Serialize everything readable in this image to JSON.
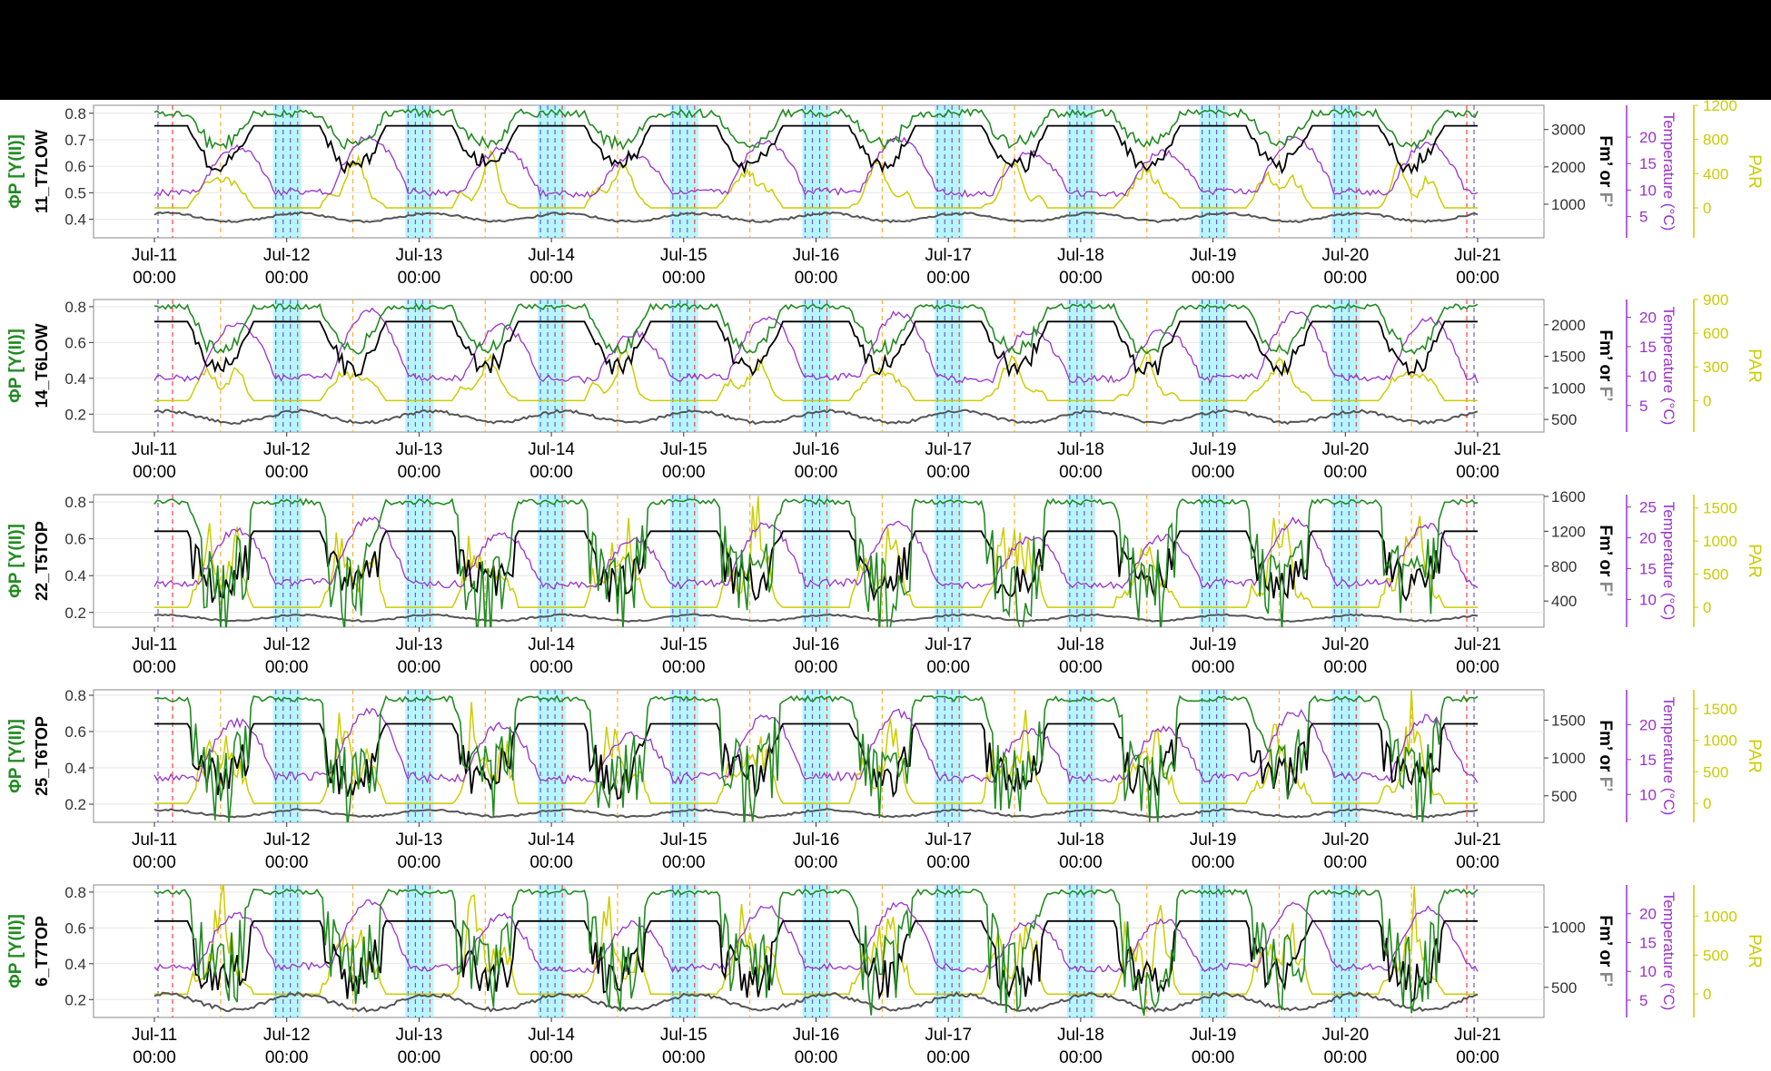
{
  "colors": {
    "phiP": "#228B22",
    "fm": "#000000",
    "f": "#555555",
    "temperature": "#9932CC",
    "par": "#CCCC00",
    "highlight": "#88F0FF",
    "dash_blue": "#6A5ACD",
    "dash_red": "#FF4040",
    "dash_orange": "#FFB030",
    "background": "#FFFFFF",
    "top_band": "#000000"
  },
  "labels": {
    "phi": "ΦP [Y(II)]",
    "fm_or_f_prefix": "Fm’ or ",
    "fm_or_f_suffix": "F’",
    "temperature": "Temperature (°C)",
    "par": "PAR"
  },
  "x_ticks": [
    {
      "date": "Jul-11",
      "time": "00:00"
    },
    {
      "date": "Jul-12",
      "time": "00:00"
    },
    {
      "date": "Jul-13",
      "time": "00:00"
    },
    {
      "date": "Jul-14",
      "time": "00:00"
    },
    {
      "date": "Jul-15",
      "time": "00:00"
    },
    {
      "date": "Jul-16",
      "time": "00:00"
    },
    {
      "date": "Jul-17",
      "time": "00:00"
    },
    {
      "date": "Jul-18",
      "time": "00:00"
    },
    {
      "date": "Jul-19",
      "time": "00:00"
    },
    {
      "date": "Jul-20",
      "time": "00:00"
    },
    {
      "date": "Jul-21",
      "time": "00:00"
    }
  ],
  "chart_data": [
    {
      "type": "line",
      "sample": "11_T7LOW",
      "x_range": [
        "Jul-11 00:00",
        "Jul-21 00:00"
      ],
      "phi_ticks": [
        "0.8",
        "0.7",
        "0.6",
        "0.5",
        "0.4"
      ],
      "fm_ticks": [
        "3000",
        "2000",
        "1000"
      ],
      "temp_ticks": [
        "20",
        "15",
        "10",
        "5"
      ],
      "par_ticks": [
        "1200",
        "800",
        "400",
        "0"
      ],
      "ranges": {
        "phi": [
          0.33,
          0.83
        ],
        "fm": [
          100,
          3650
        ],
        "temp": [
          1,
          26
        ],
        "par": [
          -350,
          1200
        ]
      },
      "dynamics": {
        "phi_day": 0.68,
        "phi_night": 0.8,
        "fm_day": 2000,
        "fm_night": 3100,
        "f_level": 720,
        "temp_min": 8,
        "temp_max": 20,
        "par_peak": 650,
        "spiky": false
      },
      "series": [
        {
          "name": "ΦP [Y(II)]",
          "axis": "left"
        },
        {
          "name": "Fm’",
          "axis": "right"
        },
        {
          "name": "F’",
          "axis": "right"
        },
        {
          "name": "Temperature (°C)",
          "axis": "right"
        },
        {
          "name": "PAR",
          "axis": "right"
        }
      ]
    },
    {
      "type": "line",
      "sample": "14_T6LOW",
      "x_range": [
        "Jul-11 00:00",
        "Jul-21 00:00"
      ],
      "phi_ticks": [
        "0.8",
        "0.6",
        "0.4",
        "0.2"
      ],
      "fm_ticks": [
        "2000",
        "1500",
        "1000",
        "500"
      ],
      "temp_ticks": [
        "20",
        "15",
        "10",
        "5"
      ],
      "par_ticks": [
        "900",
        "600",
        "300",
        "0"
      ],
      "ranges": {
        "phi": [
          0.1,
          0.84
        ],
        "fm": [
          300,
          2400
        ],
        "temp": [
          0.5,
          23
        ],
        "par": [
          -280,
          900
        ]
      },
      "dynamics": {
        "phi_day": 0.55,
        "phi_night": 0.8,
        "fm_day": 1300,
        "fm_night": 2050,
        "f_level": 600,
        "temp_min": 8,
        "temp_max": 21,
        "par_peak": 450,
        "spiky": false
      },
      "series": [
        {
          "name": "ΦP [Y(II)]",
          "axis": "left"
        },
        {
          "name": "Fm’",
          "axis": "right"
        },
        {
          "name": "F’",
          "axis": "right"
        },
        {
          "name": "Temperature (°C)",
          "axis": "right"
        },
        {
          "name": "PAR",
          "axis": "right"
        }
      ]
    },
    {
      "type": "line",
      "sample": "22_T5TOP",
      "x_range": [
        "Jul-11 00:00",
        "Jul-21 00:00"
      ],
      "phi_ticks": [
        "0.8",
        "0.6",
        "0.4",
        "0.2"
      ],
      "fm_ticks": [
        "1600",
        "1200",
        "800",
        "400"
      ],
      "temp_ticks": [
        "25",
        "20",
        "15",
        "10"
      ],
      "par_ticks": [
        "1500",
        "1000",
        "500",
        "0"
      ],
      "ranges": {
        "phi": [
          0.12,
          0.84
        ],
        "fm": [
          100,
          1620
        ],
        "temp": [
          5.5,
          27
        ],
        "par": [
          -300,
          1700
        ]
      },
      "dynamics": {
        "phi_day": 0.45,
        "phi_night": 0.8,
        "fm_day": 700,
        "fm_night": 1200,
        "f_level": 230,
        "temp_min": 11,
        "temp_max": 23,
        "par_peak": 1200,
        "spiky": true
      },
      "series": [
        {
          "name": "ΦP [Y(II)]",
          "axis": "left"
        },
        {
          "name": "Fm’",
          "axis": "right"
        },
        {
          "name": "F’",
          "axis": "right"
        },
        {
          "name": "Temperature (°C)",
          "axis": "right"
        },
        {
          "name": "PAR",
          "axis": "right"
        }
      ]
    },
    {
      "type": "line",
      "sample": "25_T6TOP",
      "x_range": [
        "Jul-11 00:00",
        "Jul-21 00:00"
      ],
      "phi_ticks": [
        "0.8",
        "0.6",
        "0.4",
        "0.2"
      ],
      "fm_ticks": [
        "1500",
        "1000",
        "500"
      ],
      "temp_ticks": [
        "20",
        "15",
        "10"
      ],
      "par_ticks": [
        "1500",
        "1000",
        "500",
        "0"
      ],
      "ranges": {
        "phi": [
          0.1,
          0.83
        ],
        "fm": [
          150,
          1900
        ],
        "temp": [
          6,
          25
        ],
        "par": [
          -300,
          1800
        ]
      },
      "dynamics": {
        "phi_day": 0.45,
        "phi_night": 0.78,
        "fm_day": 800,
        "fm_night": 1450,
        "f_level": 300,
        "temp_min": 11,
        "temp_max": 22,
        "par_peak": 1200,
        "spiky": true
      },
      "series": [
        {
          "name": "ΦP [Y(II)]",
          "axis": "left"
        },
        {
          "name": "Fm’",
          "axis": "right"
        },
        {
          "name": "F’",
          "axis": "right"
        },
        {
          "name": "Temperature (°C)",
          "axis": "right"
        },
        {
          "name": "PAR",
          "axis": "right"
        }
      ]
    },
    {
      "type": "line",
      "sample": "6_T7TOP",
      "x_range": [
        "Jul-11 00:00",
        "Jul-21 00:00"
      ],
      "phi_ticks": [
        "0.8",
        "0.6",
        "0.4",
        "0.2"
      ],
      "fm_ticks": [
        "1000",
        "500"
      ],
      "temp_ticks": [
        "20",
        "15",
        "10",
        "5"
      ],
      "par_ticks": [
        "1000",
        "500",
        "0"
      ],
      "ranges": {
        "phi": [
          0.1,
          0.84
        ],
        "fm": [
          250,
          1350
        ],
        "temp": [
          2,
          25
        ],
        "par": [
          -300,
          1400
        ]
      },
      "dynamics": {
        "phi_day": 0.5,
        "phi_night": 0.8,
        "fm_day": 650,
        "fm_night": 1050,
        "f_level": 420,
        "temp_min": 9,
        "temp_max": 22,
        "par_peak": 1000,
        "spiky": true
      },
      "series": [
        {
          "name": "ΦP [Y(II)]",
          "axis": "left"
        },
        {
          "name": "Fm’",
          "axis": "right"
        },
        {
          "name": "F’",
          "axis": "right"
        },
        {
          "name": "Temperature (°C)",
          "axis": "right"
        },
        {
          "name": "PAR",
          "axis": "right"
        }
      ]
    }
  ]
}
